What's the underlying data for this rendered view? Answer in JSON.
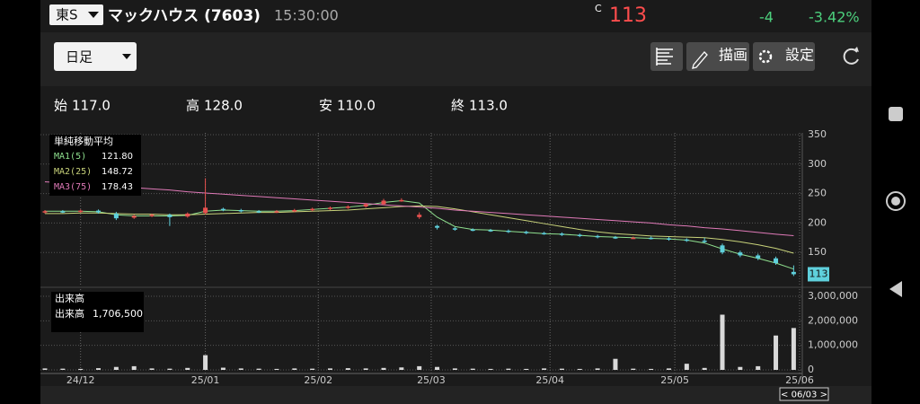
{
  "header": {
    "market": "東S",
    "name": "マックハウス (7603)",
    "time": "15:30:00",
    "c_label": "C",
    "price": "113",
    "change": "-4",
    "change_pct": "-3.42%"
  },
  "toolbar": {
    "period": "日足",
    "draw": "描画",
    "settings": "設定"
  },
  "ohlc": [
    {
      "label": "始",
      "value": "117.0"
    },
    {
      "label": "高",
      "value": "128.0"
    },
    {
      "label": "安",
      "value": "110.0"
    },
    {
      "label": "終",
      "value": "113.0"
    }
  ],
  "cursor_date": "< 06/03 >",
  "chart_data": {
    "type": "candlestick",
    "x": [
      0,
      3,
      6,
      9,
      12,
      15,
      18,
      21,
      24,
      27,
      30,
      33,
      36,
      39,
      42,
      45,
      48,
      51,
      54,
      57,
      60,
      63,
      66,
      69,
      72,
      75,
      78,
      81,
      84,
      87,
      90,
      93,
      96,
      99,
      102,
      105,
      108,
      111,
      114,
      117,
      120,
      123,
      126
    ],
    "open": [
      218,
      220,
      219,
      221,
      216,
      209,
      212,
      214,
      211,
      217,
      224,
      222,
      220,
      219,
      220,
      222,
      224,
      226,
      228,
      232,
      238,
      210,
      195,
      191,
      189,
      188,
      187,
      185,
      183,
      182,
      180,
      178,
      176,
      175,
      175,
      174,
      172,
      170,
      162,
      150,
      145,
      140,
      117
    ],
    "high": [
      222,
      222,
      223,
      223,
      219,
      214,
      216,
      216,
      218,
      276,
      226,
      224,
      222,
      222,
      224,
      226,
      228,
      230,
      234,
      241,
      242,
      218,
      197,
      193,
      191,
      190,
      189,
      187,
      185,
      184,
      182,
      180,
      178,
      177,
      177,
      176,
      174,
      175,
      165,
      153,
      148,
      143,
      128
    ],
    "low": [
      216,
      217,
      217,
      216,
      205,
      207,
      210,
      195,
      209,
      214,
      220,
      218,
      217,
      217,
      218,
      220,
      222,
      224,
      226,
      230,
      236,
      207,
      189,
      187,
      186,
      185,
      183,
      181,
      180,
      178,
      176,
      174,
      173,
      173,
      172,
      170,
      168,
      166,
      147,
      142,
      137,
      129,
      110
    ],
    "close": [
      220,
      219,
      221,
      218,
      208,
      212,
      214,
      210,
      216,
      226,
      222,
      220,
      219,
      220,
      222,
      224,
      226,
      228,
      232,
      238,
      239,
      214,
      192,
      189,
      188,
      187,
      185,
      183,
      182,
      180,
      178,
      176,
      175,
      175,
      174,
      172,
      170,
      168,
      150,
      145,
      140,
      132,
      113
    ],
    "up_color": "#e8514f",
    "down_color": "#5fd0dc",
    "xlim": [
      0,
      127
    ],
    "xticks": [
      {
        "value": 6,
        "label": "24/12"
      },
      {
        "value": 27,
        "label": "25/01"
      },
      {
        "value": 46,
        "label": "25/02"
      },
      {
        "value": 65,
        "label": "25/03"
      },
      {
        "value": 85,
        "label": "25/04"
      },
      {
        "value": 106,
        "label": "25/05"
      },
      {
        "value": 127,
        "label": "25/06"
      }
    ],
    "ylim": [
      100,
      350
    ],
    "yticks": [
      150,
      200,
      250,
      300,
      350
    ],
    "grid": true,
    "moving_averages": {
      "title": "単純移動平均",
      "series": [
        {
          "name": "MA1(5)",
          "value_label": "121.80",
          "color": "#8fe08f",
          "values": [
            220,
            220,
            220,
            219,
            214,
            212,
            212,
            212,
            213,
            220,
            222,
            221,
            220,
            220,
            221,
            223,
            225,
            227,
            230,
            235,
            238,
            234,
            210,
            194,
            189,
            188,
            186,
            184,
            182,
            181,
            179,
            177,
            176,
            175,
            174,
            173,
            171,
            166,
            156,
            147,
            140,
            132,
            121.8
          ]
        },
        {
          "name": "MA2(25)",
          "value_label": "148.72",
          "color": "#c8d27a",
          "values": [
            216,
            216,
            217,
            217,
            216,
            215,
            215,
            214,
            214,
            215,
            216,
            217,
            218,
            218,
            219,
            220,
            221,
            222,
            224,
            226,
            228,
            229,
            228,
            224,
            219,
            214,
            209,
            204,
            199,
            194,
            189,
            185,
            182,
            180,
            178,
            177,
            176,
            175,
            172,
            168,
            163,
            157,
            148.72
          ]
        },
        {
          "name": "MA3(75)",
          "value_label": "178.43",
          "color": "#e07ab8",
          "values": [
            270,
            268,
            266,
            264,
            262,
            260,
            258,
            256,
            253,
            251,
            249,
            247,
            245,
            243,
            241,
            239,
            237,
            235,
            233,
            231,
            229,
            227,
            225,
            222,
            220,
            218,
            216,
            214,
            212,
            210,
            208,
            206,
            204,
            202,
            200,
            197,
            195,
            192,
            190,
            187,
            184,
            181,
            178.43
          ]
        }
      ]
    },
    "volume": {
      "title": "出来高",
      "label": "出来高",
      "last_label": "1,706,500",
      "color": "#d9d9d9",
      "values": [
        60000,
        50000,
        40000,
        70000,
        120000,
        150000,
        60000,
        50000,
        80000,
        600000,
        90000,
        60000,
        50000,
        40000,
        60000,
        50000,
        60000,
        70000,
        60000,
        80000,
        100000,
        150000,
        120000,
        60000,
        50000,
        40000,
        50000,
        40000,
        60000,
        50000,
        40000,
        60000,
        450000,
        50000,
        40000,
        60000,
        250000,
        80000,
        2250000,
        120000,
        150000,
        1400000,
        1706500
      ],
      "ylim": [
        0,
        3000000
      ],
      "yticks": [
        0,
        {
          "value": 1000000,
          "label": "1,000,000"
        },
        {
          "value": 2000000,
          "label": "2,000,000"
        },
        {
          "value": 3000000,
          "label": "3,000,000"
        }
      ]
    }
  }
}
